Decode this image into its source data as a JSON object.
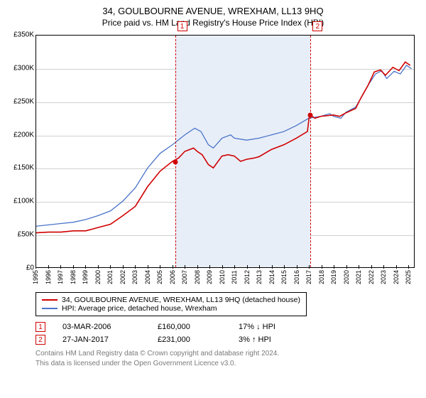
{
  "title": "34, GOULBOURNE AVENUE, WREXHAM, LL13 9HQ",
  "subtitle": "Price paid vs. HM Land Registry's House Price Index (HPI)",
  "chart": {
    "background_color": "#ffffff",
    "grid_color": "#d0d0d0",
    "shaded_color": "#e8eef8",
    "xlim": [
      1995,
      2025.5
    ],
    "ylim": [
      0,
      350000
    ],
    "ytick_step": 50000,
    "yticks": [
      {
        "v": 0,
        "label": "£0"
      },
      {
        "v": 50000,
        "label": "£50K"
      },
      {
        "v": 100000,
        "label": "£100K"
      },
      {
        "v": 150000,
        "label": "£150K"
      },
      {
        "v": 200000,
        "label": "£200K"
      },
      {
        "v": 250000,
        "label": "£250K"
      },
      {
        "v": 300000,
        "label": "£300K"
      },
      {
        "v": 350000,
        "label": "£350K"
      }
    ],
    "xticks": [
      1995,
      1996,
      1997,
      1998,
      1999,
      2000,
      2001,
      2002,
      2003,
      2004,
      2005,
      2006,
      2007,
      2008,
      2009,
      2010,
      2011,
      2012,
      2013,
      2014,
      2015,
      2016,
      2017,
      2018,
      2019,
      2020,
      2021,
      2022,
      2023,
      2024,
      2025
    ],
    "shaded_range": [
      2006.17,
      2017.07
    ],
    "series": {
      "property": {
        "color": "#d00000",
        "width": 1.6,
        "label": "34, GOULBOURNE AVENUE, WREXHAM, LL13 9HQ (detached house)",
        "data": [
          [
            1995,
            52000
          ],
          [
            1996,
            53000
          ],
          [
            1997,
            53000
          ],
          [
            1998,
            55000
          ],
          [
            1999,
            55000
          ],
          [
            2000,
            60000
          ],
          [
            2001,
            65000
          ],
          [
            2002,
            78000
          ],
          [
            2003,
            92000
          ],
          [
            2004,
            122000
          ],
          [
            2005,
            145000
          ],
          [
            2006,
            160000
          ],
          [
            2006.5,
            165000
          ],
          [
            2007,
            175000
          ],
          [
            2007.7,
            180000
          ],
          [
            2008,
            175000
          ],
          [
            2008.4,
            170000
          ],
          [
            2008.9,
            155000
          ],
          [
            2009.3,
            150000
          ],
          [
            2010,
            168000
          ],
          [
            2010.5,
            170000
          ],
          [
            2011,
            168000
          ],
          [
            2011.5,
            160000
          ],
          [
            2012,
            163000
          ],
          [
            2012.6,
            165000
          ],
          [
            2013,
            167000
          ],
          [
            2014,
            178000
          ],
          [
            2015,
            185000
          ],
          [
            2016,
            195000
          ],
          [
            2016.9,
            205000
          ],
          [
            2017.07,
            231000
          ],
          [
            2017.5,
            225000
          ],
          [
            2018,
            228000
          ],
          [
            2019,
            230000
          ],
          [
            2019.5,
            228000
          ],
          [
            2020,
            233000
          ],
          [
            2020.8,
            240000
          ],
          [
            2021.2,
            255000
          ],
          [
            2021.8,
            275000
          ],
          [
            2022.3,
            295000
          ],
          [
            2022.8,
            298000
          ],
          [
            2023.2,
            290000
          ],
          [
            2023.8,
            302000
          ],
          [
            2024.3,
            297000
          ],
          [
            2024.8,
            310000
          ],
          [
            2025.2,
            305000
          ]
        ]
      },
      "hpi": {
        "color": "#4a74c9",
        "width": 1.3,
        "label": "HPI: Average price, detached house, Wrexham",
        "data": [
          [
            1995,
            62000
          ],
          [
            1996,
            64000
          ],
          [
            1997,
            66000
          ],
          [
            1998,
            68000
          ],
          [
            1999,
            72000
          ],
          [
            2000,
            78000
          ],
          [
            2001,
            85000
          ],
          [
            2002,
            100000
          ],
          [
            2003,
            120000
          ],
          [
            2004,
            150000
          ],
          [
            2005,
            172000
          ],
          [
            2006,
            185000
          ],
          [
            2007,
            200000
          ],
          [
            2007.8,
            210000
          ],
          [
            2008.3,
            205000
          ],
          [
            2008.9,
            185000
          ],
          [
            2009.3,
            180000
          ],
          [
            2010,
            195000
          ],
          [
            2010.7,
            200000
          ],
          [
            2011,
            195000
          ],
          [
            2012,
            192000
          ],
          [
            2013,
            195000
          ],
          [
            2014,
            200000
          ],
          [
            2015,
            205000
          ],
          [
            2016,
            214000
          ],
          [
            2017,
            225000
          ],
          [
            2018,
            228000
          ],
          [
            2018.7,
            232000
          ],
          [
            2019,
            228000
          ],
          [
            2019.6,
            225000
          ],
          [
            2020,
            234000
          ],
          [
            2020.8,
            242000
          ],
          [
            2021.3,
            258000
          ],
          [
            2021.9,
            278000
          ],
          [
            2022.4,
            292000
          ],
          [
            2022.9,
            297000
          ],
          [
            2023.3,
            285000
          ],
          [
            2023.9,
            296000
          ],
          [
            2024.4,
            292000
          ],
          [
            2024.9,
            305000
          ],
          [
            2025.3,
            300000
          ]
        ]
      }
    },
    "sale_points": [
      {
        "n": "1",
        "x": 2006.17,
        "y": 160000,
        "color": "#d00000"
      },
      {
        "n": "2",
        "x": 2017.07,
        "y": 231000,
        "color": "#d00000"
      }
    ]
  },
  "legend": [
    {
      "color": "#d00000",
      "text": "34, GOULBOURNE AVENUE, WREXHAM, LL13 9HQ (detached house)"
    },
    {
      "color": "#4a74c9",
      "text": "HPI: Average price, detached house, Wrexham"
    }
  ],
  "sales": [
    {
      "n": "1",
      "date": "03-MAR-2006",
      "price": "£160,000",
      "delta": "17% ↓ HPI"
    },
    {
      "n": "2",
      "date": "27-JAN-2017",
      "price": "£231,000",
      "delta": "3% ↑ HPI"
    }
  ],
  "footer_line1": "Contains HM Land Registry data © Crown copyright and database right 2024.",
  "footer_line2": "This data is licensed under the Open Government Licence v3.0."
}
